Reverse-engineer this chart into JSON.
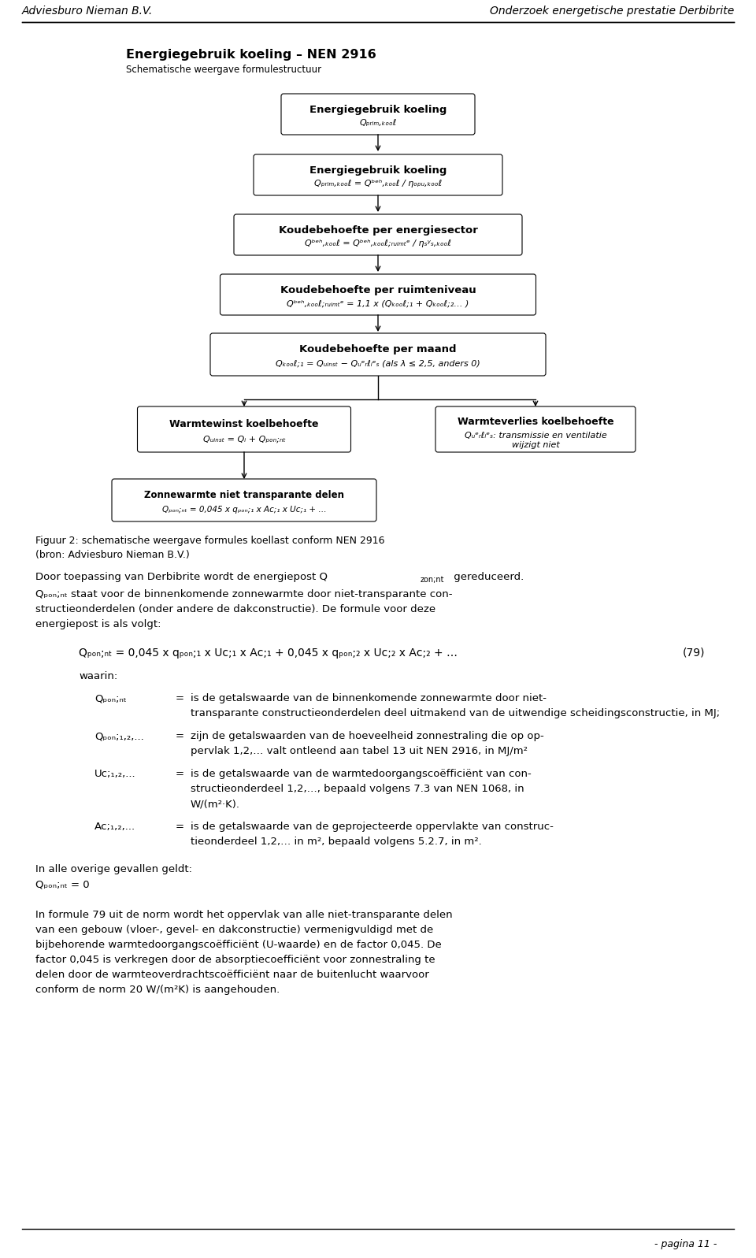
{
  "header_left": "Adviesburo Nieman B.V.",
  "header_right": "Onderzoek energetische prestatie Derbibrite",
  "footer_right": "- pagina 11 -",
  "diagram_title": "Energiegebruik koeling – NEN 2916",
  "diagram_subtitle": "Schematische weergave formulestructuur",
  "fig_caption_line1": "Figuur 2: schematische weergave formules koellast conform NEN 2916",
  "fig_caption_line2": "(bron: Adviesburo Nieman B.V.)",
  "para1": "Door toepassing van Derbibrite wordt de energiepost Q",
  "para1_sub": "zon;nt",
  "para1_end": " gereduceerd.",
  "para2": "Qₚₒₙ;ₙₜ staat voor de binnenkomende zonnewarmte door niet-transparante con-\nstructieonderdelen (onder andere de dakconstructie). De formule voor deze\nenergie­post is als volgt:",
  "formula": "Qₚₒₙ;ₙₜ = 0,045 x qₚₒₙ;₁ x Uᴄ;₁ x Aᴄ;₁ + 0,045 x qₚₒₙ;₂ x Uᴄ;₂ x Aᴄ;₂ + …",
  "formula_number": "(79)",
  "waarin": "waarin:",
  "definitions": [
    {
      "sym": "Qₚₒₙ;ₙₜ",
      "desc": "is de getalswaarde van de binnenkomende zonnewarmte door niet-transparante constructieonderdelen deel uitmakend van de uitwendige scheidingsconstructie, in MJ;"
    },
    {
      "sym": "Qₚₒₙ;₁,₂,...",
      "desc": "zijn de getalswaarden van de hoeveelheid zonnestraling die op op-pervlak 1,2,… valt ontleend aan tabel 13 uit NEN 2916, in MJ/m²"
    },
    {
      "sym": "Uᴄ;₁,₂,...",
      "desc": "is de getalswaarde van de warmtedoorgangscoëfficiënt van constructieonderdeel 1,2,…, bepaald volgens 7.3 van NEN 1068, in W/(m²·K)."
    },
    {
      "sym": "Aᴄ;₁,₂,...",
      "desc": "is de getalswaarde van de geprojecteerde oppervlakte van constructieonderdeel 1,2,… in m², bepaald volgens 5.2.7, in m²."
    }
  ],
  "in_alle_line1": "In alle overige gevallen geldt:",
  "in_alle_line2": "Qₚₒₙ;ₙₜ = 0",
  "last_para": "In formule 79 uit de norm wordt het oppervlak van alle niet-transparante delen\nvan een gebouw (vloer-, gevel- en dakconstructie) vermenigvuldigd met de\nbijbehorende warmtedoorgangscoëfficiënt (U-waarde) en de factor 0,045. De\nfactor 0,045 is verkregen door de absorptiecoefficiënt voor zonnestraling te\ndelen door de warmteoverdrachtscoëfficiënt naar de buitenlucht waarvoor\nconform de norm 20 W/(m²K) is aangehouden.",
  "bg_color": "#ffffff"
}
